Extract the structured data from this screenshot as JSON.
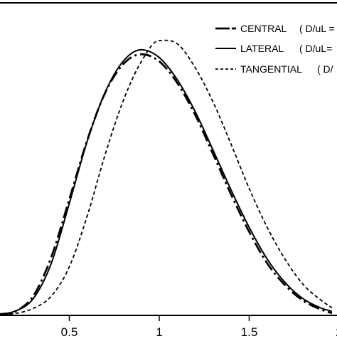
{
  "chart_data": {
    "type": "line",
    "title": "",
    "xlabel": "",
    "ylabel": "",
    "xlim": [
      0.0,
      2.0
    ],
    "ylim": [
      0.0,
      1.0
    ],
    "x_ticks": [
      0.5,
      1.0,
      1.5,
      2.0
    ],
    "x_tick_labels": [
      "0.5",
      "1",
      "1.5",
      "2"
    ],
    "grid": false,
    "legend": {
      "placement": "top-right",
      "entries": [
        {
          "name": "CENTRAL",
          "suffix": "( D/uL =",
          "style": "long-dash-dot"
        },
        {
          "name": "LATERAL",
          "suffix": "( D/uL=",
          "style": "solid"
        },
        {
          "name": "TANGENTIAL",
          "suffix": "( D/",
          "style": "dashed"
        }
      ]
    },
    "series": [
      {
        "name": "CENTRAL",
        "style": "long-dash-dot",
        "x": [
          0.0,
          0.1,
          0.2,
          0.3,
          0.4,
          0.5,
          0.6,
          0.7,
          0.8,
          0.9,
          1.0,
          1.1,
          1.2,
          1.3,
          1.4,
          1.5,
          1.6,
          1.7,
          1.8,
          1.9,
          1.96
        ],
        "y": [
          0.0,
          0.001,
          0.011,
          0.063,
          0.193,
          0.386,
          0.584,
          0.743,
          0.838,
          0.871,
          0.847,
          0.775,
          0.668,
          0.536,
          0.401,
          0.277,
          0.172,
          0.098,
          0.047,
          0.017,
          0.005
        ]
      },
      {
        "name": "LATERAL",
        "style": "solid",
        "x": [
          0.0,
          0.1,
          0.2,
          0.3,
          0.4,
          0.5,
          0.6,
          0.7,
          0.8,
          0.9,
          1.0,
          1.1,
          1.2,
          1.3,
          1.4,
          1.5,
          1.6,
          1.7,
          1.8,
          1.9,
          1.96
        ],
        "y": [
          0.0,
          0.002,
          0.012,
          0.054,
          0.172,
          0.372,
          0.581,
          0.745,
          0.848,
          0.886,
          0.86,
          0.786,
          0.679,
          0.549,
          0.416,
          0.292,
          0.186,
          0.107,
          0.053,
          0.022,
          0.011
        ]
      },
      {
        "name": "TANGENTIAL",
        "style": "dashed",
        "x": [
          0.0,
          0.1,
          0.2,
          0.3,
          0.4,
          0.5,
          0.6,
          0.7,
          0.8,
          0.9,
          1.0,
          1.1,
          1.2,
          1.3,
          1.4,
          1.5,
          1.6,
          1.7,
          1.8,
          1.9,
          1.96
        ],
        "y": [
          0.0,
          0.0,
          0.004,
          0.021,
          0.062,
          0.16,
          0.331,
          0.537,
          0.716,
          0.846,
          0.917,
          0.906,
          0.826,
          0.71,
          0.569,
          0.422,
          0.292,
          0.185,
          0.101,
          0.048,
          0.023
        ]
      }
    ]
  }
}
